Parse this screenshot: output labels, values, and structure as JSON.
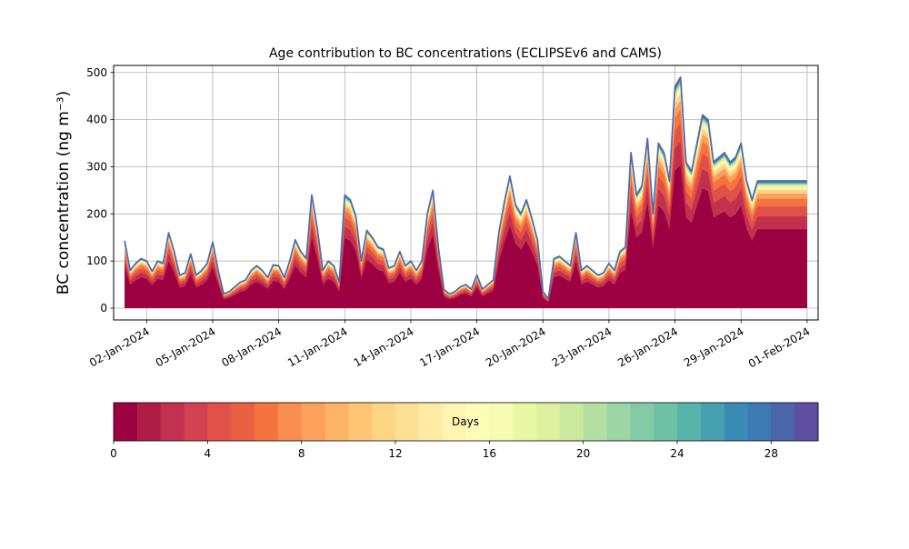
{
  "chart_data": {
    "type": "area",
    "title": "Age contribution to BC concentrations (ECLIPSEv6 and CAMS)",
    "xlabel": "",
    "ylabel": "BC concentration (ng m⁻³)",
    "ylim": [
      -25,
      515
    ],
    "xlim": [
      "2023-12-31T12:00",
      "2024-02-01T12:00"
    ],
    "yticks": [
      0,
      100,
      200,
      300,
      400,
      500
    ],
    "xticks": [
      "2024-01-02",
      "2024-01-05",
      "2024-01-08",
      "2024-01-11",
      "2024-01-14",
      "2024-01-17",
      "2024-01-20",
      "2024-01-23",
      "2024-01-26",
      "2024-01-29",
      "2024-02-01"
    ],
    "xtick_labels": [
      "02-Jan-2024",
      "05-Jan-2024",
      "08-Jan-2024",
      "11-Jan-2024",
      "14-Jan-2024",
      "17-Jan-2024",
      "20-Jan-2024",
      "23-Jan-2024",
      "26-Jan-2024",
      "29-Jan-2024",
      "01-Feb-2024"
    ],
    "grid": true,
    "total_line_color": "#4f6bb0",
    "total": {
      "x": [
        "2024-01-01T00:00",
        "2024-01-01T06:00",
        "2024-01-01T12:00",
        "2024-01-01T18:00",
        "2024-01-02T00:00",
        "2024-01-02T06:00",
        "2024-01-02T12:00",
        "2024-01-02T18:00",
        "2024-01-03T00:00",
        "2024-01-03T06:00",
        "2024-01-03T12:00",
        "2024-01-03T18:00",
        "2024-01-04T00:00",
        "2024-01-04T06:00",
        "2024-01-04T12:00",
        "2024-01-04T18:00",
        "2024-01-05T00:00",
        "2024-01-05T06:00",
        "2024-01-05T12:00",
        "2024-01-05T18:00",
        "2024-01-06T00:00",
        "2024-01-06T06:00",
        "2024-01-06T12:00",
        "2024-01-06T18:00",
        "2024-01-07T00:00",
        "2024-01-07T06:00",
        "2024-01-07T12:00",
        "2024-01-07T18:00",
        "2024-01-08T00:00",
        "2024-01-08T06:00",
        "2024-01-08T12:00",
        "2024-01-08T18:00",
        "2024-01-09T00:00",
        "2024-01-09T06:00",
        "2024-01-09T12:00",
        "2024-01-09T18:00",
        "2024-01-10T00:00",
        "2024-01-10T06:00",
        "2024-01-10T12:00",
        "2024-01-10T18:00",
        "2024-01-11T00:00",
        "2024-01-11T06:00",
        "2024-01-11T12:00",
        "2024-01-11T18:00",
        "2024-01-12T00:00",
        "2024-01-12T06:00",
        "2024-01-12T12:00",
        "2024-01-12T18:00",
        "2024-01-13T00:00",
        "2024-01-13T06:00",
        "2024-01-13T12:00",
        "2024-01-13T18:00",
        "2024-01-14T00:00",
        "2024-01-14T06:00",
        "2024-01-14T12:00",
        "2024-01-14T18:00",
        "2024-01-15T00:00",
        "2024-01-15T06:00",
        "2024-01-15T12:00",
        "2024-01-15T18:00",
        "2024-01-16T00:00",
        "2024-01-16T06:00",
        "2024-01-16T12:00",
        "2024-01-16T18:00",
        "2024-01-17T00:00",
        "2024-01-17T06:00",
        "2024-01-17T12:00",
        "2024-01-17T18:00",
        "2024-01-18T00:00",
        "2024-01-18T06:00",
        "2024-01-18T12:00",
        "2024-01-18T18:00",
        "2024-01-19T00:00",
        "2024-01-19T06:00",
        "2024-01-19T12:00",
        "2024-01-19T18:00",
        "2024-01-20T00:00",
        "2024-01-20T06:00",
        "2024-01-20T12:00",
        "2024-01-20T18:00",
        "2024-01-21T00:00",
        "2024-01-21T06:00",
        "2024-01-21T12:00",
        "2024-01-21T18:00",
        "2024-01-22T00:00",
        "2024-01-22T06:00",
        "2024-01-22T12:00",
        "2024-01-22T18:00",
        "2024-01-23T00:00",
        "2024-01-23T06:00",
        "2024-01-23T12:00",
        "2024-01-23T18:00",
        "2024-01-24T00:00",
        "2024-01-24T06:00",
        "2024-01-24T12:00",
        "2024-01-24T18:00",
        "2024-01-25T00:00",
        "2024-01-25T06:00",
        "2024-01-25T12:00",
        "2024-01-25T18:00",
        "2024-01-26T00:00",
        "2024-01-26T06:00",
        "2024-01-26T12:00",
        "2024-01-26T18:00",
        "2024-01-27T00:00",
        "2024-01-27T06:00",
        "2024-01-27T12:00",
        "2024-01-27T18:00",
        "2024-01-28T00:00",
        "2024-01-28T06:00",
        "2024-01-28T12:00",
        "2024-01-28T18:00",
        "2024-01-29T00:00",
        "2024-01-29T06:00",
        "2024-01-29T12:00",
        "2024-01-29T18:00",
        "2024-01-30T00:00",
        "2024-01-30T06:00",
        "2024-01-30T12:00",
        "2024-01-30T18:00",
        "2024-01-31T00:00",
        "2024-01-31T06:00",
        "2024-01-31T12:00",
        "2024-01-31T18:00",
        "2024-02-01T00:00"
      ],
      "y": [
        143,
        80,
        95,
        105,
        100,
        78,
        100,
        95,
        160,
        120,
        70,
        75,
        115,
        70,
        80,
        95,
        140,
        80,
        30,
        35,
        45,
        55,
        60,
        80,
        90,
        80,
        65,
        92,
        90,
        65,
        100,
        145,
        120,
        105,
        240,
        170,
        80,
        100,
        90,
        55,
        240,
        230,
        195,
        100,
        165,
        150,
        130,
        125,
        85,
        90,
        120,
        90,
        100,
        80,
        100,
        200,
        250,
        130,
        40,
        30,
        35,
        45,
        50,
        40,
        70,
        40,
        50,
        60,
        160,
        225,
        280,
        220,
        200,
        230,
        190,
        145,
        35,
        20,
        105,
        110,
        100,
        90,
        160,
        80,
        90,
        80,
        70,
        75,
        95,
        80,
        120,
        130,
        330,
        240,
        260,
        360,
        200,
        350,
        330,
        270,
        470,
        490,
        310,
        290,
        350,
        410,
        400,
        310,
        320,
        330,
        310,
        320,
        350,
        270,
        230,
        270,
        270,
        270,
        270,
        270,
        270,
        270,
        270,
        270,
        270
      ]
    },
    "colorbar": {
      "label": "Days",
      "range": [
        0,
        30
      ],
      "ticks": [
        0,
        4,
        8,
        12,
        16,
        20,
        24,
        28
      ],
      "colors": [
        "#9e0142",
        "#b01e48",
        "#c2314e",
        "#d24152",
        "#e1514a",
        "#ea6043",
        "#f4743f",
        "#f98d52",
        "#fca15c",
        "#fdb366",
        "#fec574",
        "#fed485",
        "#fee095",
        "#feeca4",
        "#fff5b3",
        "#fdfdba",
        "#f5fbb0",
        "#e9f6a2",
        "#dcf09d",
        "#c9e99e",
        "#b3e0a0",
        "#9cd6a4",
        "#84cba5",
        "#6dc1a5",
        "#58b4aa",
        "#46a0b0",
        "#3a8cb4",
        "#3c7ab5",
        "#4b65ad",
        "#5e4fa2"
      ]
    }
  }
}
